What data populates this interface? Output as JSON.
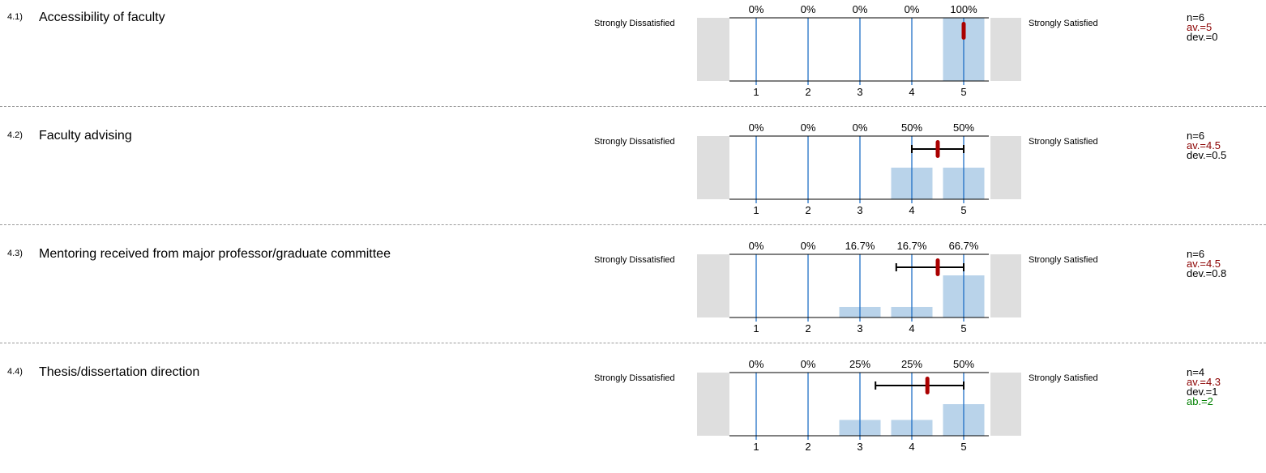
{
  "colors": {
    "bar": "#b9d3ea",
    "gridline": "#1f6fc5",
    "side_box": "#dedede",
    "axis": "#000000",
    "mean_marker": "#aa0000",
    "deviation_bar": "#000000",
    "average_text": "#8b0000",
    "abstention_text": "#008000"
  },
  "scale_labels": {
    "left": "Strongly Dissatisfied",
    "right": "Strongly Satisfied"
  },
  "chart_data": [
    {
      "type": "bar",
      "question_number": "4.1)",
      "title": "Accessibility of faculty",
      "categories": [
        "1",
        "2",
        "3",
        "4",
        "5"
      ],
      "values": [
        0,
        0,
        0,
        0,
        100
      ],
      "value_labels": [
        "0%",
        "0%",
        "0%",
        "0%",
        "100%"
      ],
      "ylim": [
        0,
        100
      ],
      "mean": 5,
      "std_dev": 0,
      "stats": {
        "n": "n=6",
        "av": "av.=5",
        "dev": "dev.=0"
      }
    },
    {
      "type": "bar",
      "question_number": "4.2)",
      "title": "Faculty advising",
      "categories": [
        "1",
        "2",
        "3",
        "4",
        "5"
      ],
      "values": [
        0,
        0,
        0,
        50,
        50
      ],
      "value_labels": [
        "0%",
        "0%",
        "0%",
        "50%",
        "50%"
      ],
      "ylim": [
        0,
        100
      ],
      "mean": 4.5,
      "std_dev": 0.5,
      "stats": {
        "n": "n=6",
        "av": "av.=4.5",
        "dev": "dev.=0.5"
      }
    },
    {
      "type": "bar",
      "question_number": "4.3)",
      "title": "Mentoring received from major professor/graduate committee",
      "categories": [
        "1",
        "2",
        "3",
        "4",
        "5"
      ],
      "values": [
        0,
        0,
        16.7,
        16.7,
        66.7
      ],
      "value_labels": [
        "0%",
        "0%",
        "16.7%",
        "16.7%",
        "66.7%"
      ],
      "ylim": [
        0,
        100
      ],
      "mean": 4.5,
      "std_dev": 0.8,
      "stats": {
        "n": "n=6",
        "av": "av.=4.5",
        "dev": "dev.=0.8"
      }
    },
    {
      "type": "bar",
      "question_number": "4.4)",
      "title": "Thesis/dissertation direction",
      "categories": [
        "1",
        "2",
        "3",
        "4",
        "5"
      ],
      "values": [
        0,
        0,
        25,
        25,
        50
      ],
      "value_labels": [
        "0%",
        "0%",
        "25%",
        "25%",
        "50%"
      ],
      "ylim": [
        0,
        100
      ],
      "mean": 4.3,
      "std_dev": 1,
      "stats": {
        "n": "n=4",
        "av": "av.=4.3",
        "dev": "dev.=1",
        "ab": "ab.=2"
      }
    }
  ]
}
